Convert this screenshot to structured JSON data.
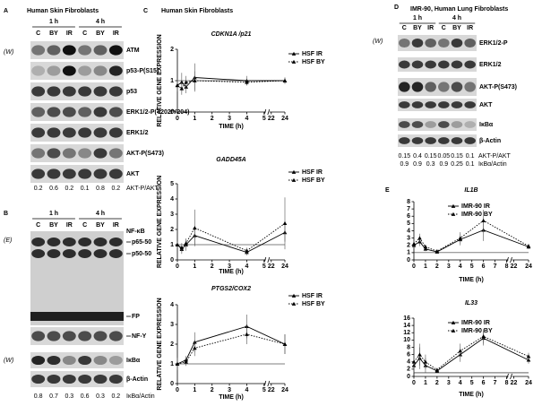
{
  "panels": {
    "A": {
      "letter": "A",
      "title": "Human Skin Fibroblasts",
      "time_labels": [
        "1 h",
        "4 h"
      ],
      "lanes": [
        "C",
        "BY",
        "IR",
        "C",
        "BY",
        "IR"
      ],
      "side_notes": [
        "(W)"
      ],
      "rows": [
        "ATM",
        "p53-P(S15)",
        "p53",
        "ERK1/2-P(T202/Y204)",
        "ERK1/2",
        "AKT-P(S473)",
        "AKT"
      ],
      "ratio_rows": [
        {
          "values": [
            0.2,
            0.6,
            0.2,
            0.1,
            0.8,
            0.2
          ],
          "label": "AKT-P/AKT"
        }
      ]
    },
    "B": {
      "letter": "B",
      "time_labels": [
        "1 h",
        "4 h"
      ],
      "lanes": [
        "C",
        "BY",
        "IR",
        "C",
        "BY",
        "IR"
      ],
      "side_notes": [
        "(E)",
        "(W)"
      ],
      "emsa_labels": [
        "NF-κB",
        "p65-50",
        "p50-50",
        "FP",
        "NF-Y"
      ],
      "rows": [
        "IκBα",
        "β-Actin"
      ],
      "ratio_rows": [
        {
          "values": [
            0.8,
            0.7,
            0.3,
            0.6,
            0.3,
            0.2
          ],
          "label": "IκBα/Actin"
        }
      ]
    },
    "C": {
      "letter": "C",
      "title": "Human Skin Fibroblasts"
    },
    "D": {
      "letter": "D",
      "title": "IMR-90, Human Lung Fibroblasts",
      "time_labels": [
        "1 h",
        "4 h"
      ],
      "lanes": [
        "C",
        "BY",
        "IR",
        "C",
        "BY",
        "IR"
      ],
      "side_notes": [
        "(W)"
      ],
      "rows": [
        "ERK1/2-P",
        "ERK1/2",
        "AKT-P(S473)",
        "AKT",
        "IκBα",
        "β-Actin"
      ],
      "ratio_rows": [
        {
          "values": [
            0.15,
            0.4,
            0.15,
            0.05,
            0.15,
            0.1
          ],
          "label": "AKT-P/AKT"
        },
        {
          "values": [
            0.9,
            0.9,
            0.3,
            0.9,
            0.25,
            0.1
          ],
          "label": "IκBα/Actin"
        }
      ]
    },
    "E": {
      "letter": "E"
    }
  },
  "chart_data": [
    {
      "type": "line",
      "title": "CDKN1A /p21",
      "x_label": "TIME (h)",
      "y_label": "RELATIVE GENE EXPRESSION",
      "x": [
        0,
        0.25,
        0.5,
        1,
        4,
        24
      ],
      "xlim": [
        0,
        24
      ],
      "xticks": [
        0,
        1,
        2,
        3,
        4,
        5,
        22,
        24
      ],
      "ylim": [
        0,
        2
      ],
      "yticks": [
        0,
        1,
        2
      ],
      "reference_line": 1,
      "legend": "upper right",
      "series": [
        {
          "name": "HSF IR",
          "color": "#000000",
          "line_style": "solid",
          "values": [
            0.85,
            0.95,
            0.8,
            1.1,
            1.0,
            1.0
          ],
          "errors": [
            0.2,
            0.3,
            0.2,
            0.45,
            0.15,
            0.1
          ]
        },
        {
          "name": "HSF BY",
          "color": "#000000",
          "line_style": "dotted",
          "values": [
            0.85,
            0.75,
            0.95,
            1.0,
            0.95,
            1.0
          ],
          "errors": [
            0.15,
            0.2,
            0.2,
            0.3,
            0.1,
            0.1
          ]
        }
      ]
    },
    {
      "type": "line",
      "title": "GADD45A",
      "x_label": "TIME (h)",
      "y_label": "RELATIVE GENE EXPRESSION",
      "x": [
        0,
        0.25,
        0.5,
        1,
        4,
        24
      ],
      "xlim": [
        0,
        24
      ],
      "xticks": [
        0,
        1,
        2,
        3,
        4,
        5,
        22,
        24
      ],
      "ylim": [
        0,
        5
      ],
      "yticks": [
        0,
        1,
        2,
        3,
        4,
        5
      ],
      "reference_line": 1,
      "legend": "upper right",
      "series": [
        {
          "name": "HSF IR",
          "color": "#000000",
          "line_style": "solid",
          "values": [
            1.0,
            0.7,
            1.0,
            1.6,
            0.5,
            1.8
          ],
          "errors": [
            0.2,
            0.3,
            0.4,
            0.6,
            0.2,
            0.6
          ]
        },
        {
          "name": "HSF BY",
          "color": "#000000",
          "line_style": "dotted",
          "values": [
            1.0,
            0.8,
            1.1,
            2.1,
            0.6,
            2.4
          ],
          "errors": [
            0.2,
            0.3,
            0.3,
            1.2,
            0.2,
            1.7
          ]
        }
      ]
    },
    {
      "type": "line",
      "title": "PTGS2/COX2",
      "x_label": "TIME (h)",
      "y_label": "RELATIVE GENE EXPRESSION",
      "x": [
        0,
        0.5,
        1,
        4,
        24
      ],
      "xlim": [
        0,
        24
      ],
      "xticks": [
        0,
        1,
        2,
        3,
        4,
        5,
        22,
        24
      ],
      "ylim": [
        0,
        4
      ],
      "yticks": [
        0,
        1,
        2,
        3,
        4
      ],
      "reference_line": 1,
      "legend": "upper right",
      "series": [
        {
          "name": "HSF IR",
          "color": "#000000",
          "line_style": "solid",
          "values": [
            1.0,
            1.2,
            2.1,
            2.9,
            2.0
          ],
          "errors": [
            0.3,
            0.2,
            0.5,
            0.6,
            0.5
          ]
        },
        {
          "name": "HSF BY",
          "color": "#000000",
          "line_style": "dotted",
          "values": [
            1.0,
            1.1,
            1.8,
            2.5,
            2.0
          ],
          "errors": [
            0.3,
            0.2,
            0.4,
            0.5,
            0.5
          ]
        }
      ]
    },
    {
      "type": "line",
      "title": "IL1B",
      "x_label": "TIME (h)",
      "x": [
        0,
        0.5,
        1,
        2,
        4,
        6,
        24
      ],
      "xlim": [
        0,
        24
      ],
      "xticks": [
        0,
        1,
        2,
        3,
        4,
        5,
        6,
        7,
        8,
        22,
        24
      ],
      "ylim": [
        0,
        8
      ],
      "yticks": [
        0,
        1,
        2,
        3,
        4,
        5,
        6,
        7,
        8
      ],
      "reference_line": 1,
      "legend": "upper right",
      "series": [
        {
          "name": "IMR-90 IR",
          "color": "#000000",
          "line_style": "solid",
          "values": [
            2.0,
            2.5,
            1.5,
            1.1,
            2.8,
            4.1,
            1.8
          ],
          "errors": [
            0.4,
            0.6,
            0.3,
            0.2,
            0.8,
            1.5,
            0.3
          ]
        },
        {
          "name": "IMR-90 BY",
          "color": "#000000",
          "line_style": "dotted",
          "values": [
            2.2,
            3.0,
            1.8,
            1.2,
            3.0,
            5.4,
            1.9
          ],
          "errors": [
            0.4,
            0.6,
            0.3,
            0.2,
            0.8,
            1.5,
            0.3
          ]
        }
      ]
    },
    {
      "type": "line",
      "title": "IL33",
      "x_label": "TIME (h)",
      "x": [
        0,
        0.5,
        1,
        2,
        4,
        6,
        24
      ],
      "xlim": [
        0,
        24
      ],
      "xticks": [
        0,
        1,
        2,
        3,
        4,
        5,
        6,
        7,
        8,
        22,
        24
      ],
      "ylim": [
        0,
        16
      ],
      "yticks": [
        0,
        2,
        4,
        6,
        8,
        10,
        12,
        14,
        16
      ],
      "reference_line": 1,
      "legend": "upper right",
      "series": [
        {
          "name": "IMR-90 IR",
          "color": "#000000",
          "line_style": "solid",
          "values": [
            3.0,
            5.0,
            3.0,
            1.5,
            6.0,
            10.5,
            4.5
          ],
          "errors": [
            2.0,
            3.0,
            2.0,
            0.5,
            2.0,
            2.0,
            1.0
          ]
        },
        {
          "name": "IMR-90 BY",
          "color": "#000000",
          "line_style": "dotted",
          "values": [
            4.0,
            6.0,
            4.0,
            1.8,
            7.0,
            11.0,
            5.5
          ],
          "errors": [
            2.0,
            3.0,
            2.0,
            0.5,
            2.0,
            2.0,
            1.0
          ]
        }
      ]
    }
  ]
}
